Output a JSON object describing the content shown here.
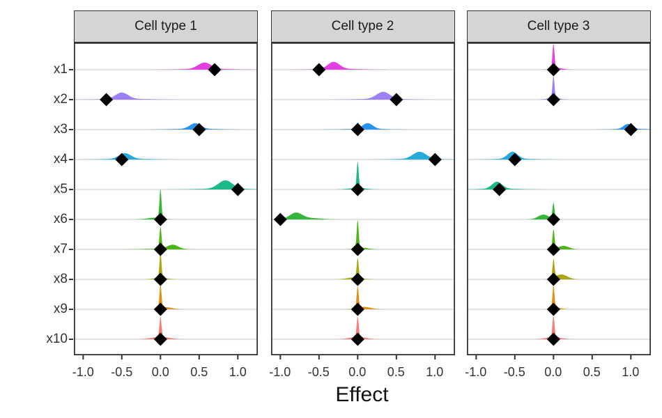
{
  "chart_data": {
    "type": "ridgeline",
    "title": "",
    "xlabel": "Effect",
    "ylabel": "",
    "x_ticks": [
      -1.0,
      -0.5,
      0.0,
      0.5,
      1.0
    ],
    "x_tick_labels": [
      "-1.0",
      "-0.5",
      "0.0",
      "0.5",
      "1.0"
    ],
    "xlim": [
      -1.12,
      1.26
    ],
    "grid": "horizontal-major-only",
    "legend": "none",
    "point_marker": "diamond",
    "marker_color": "#000000",
    "strip_fill": "#D5D5D5",
    "border_color": "#333333",
    "grid_color": "#E4E4E4",
    "y_categories": [
      "x1",
      "x2",
      "x3",
      "x4",
      "x5",
      "x6",
      "x7",
      "x8",
      "x9",
      "x10"
    ],
    "colors": [
      "#E23BDE",
      "#9C7BF4",
      "#2290F0",
      "#22A7DB",
      "#16B787",
      "#30B433",
      "#45B40E",
      "#A9A408",
      "#DD8D0E",
      "#F8766D"
    ],
    "density_note": "density components as [center, sigma, peak_height_px] on Effect scale",
    "facets": [
      {
        "title": "Cell type 1",
        "rows": [
          {
            "var": "x1",
            "estimate": 0.7,
            "density": [
              [
                0.57,
                0.085,
                9
              ],
              [
                0.6,
                0.28,
                1.2
              ]
            ]
          },
          {
            "var": "x2",
            "estimate": -0.7,
            "density": [
              [
                -0.5,
                0.08,
                9
              ],
              [
                -0.45,
                0.28,
                1.2
              ]
            ]
          },
          {
            "var": "x3",
            "estimate": 0.5,
            "density": [
              [
                0.45,
                0.07,
                8
              ],
              [
                0.45,
                0.25,
                1.2
              ]
            ]
          },
          {
            "var": "x4",
            "estimate": -0.5,
            "density": [
              [
                -0.46,
                0.075,
                8
              ],
              [
                -0.42,
                0.25,
                1.2
              ]
            ]
          },
          {
            "var": "x5",
            "estimate": 1.0,
            "density": [
              [
                0.84,
                0.09,
                12
              ],
              [
                0.8,
                0.28,
                1.2
              ]
            ]
          },
          {
            "var": "x6",
            "estimate": 0.0,
            "density": [
              [
                0,
                0.013,
                42
              ],
              [
                -0.08,
                0.09,
                2.5
              ]
            ]
          },
          {
            "var": "x7",
            "estimate": 0.0,
            "density": [
              [
                0,
                0.013,
                31
              ],
              [
                0.16,
                0.07,
                6
              ],
              [
                0,
                0.2,
                1
              ]
            ]
          },
          {
            "var": "x8",
            "estimate": 0.0,
            "density": [
              [
                0,
                0.013,
                36
              ],
              [
                0,
                0.08,
                2.5
              ]
            ]
          },
          {
            "var": "x9",
            "estimate": 0.0,
            "density": [
              [
                0,
                0.013,
                34
              ],
              [
                0.07,
                0.08,
                3
              ]
            ]
          },
          {
            "var": "x10",
            "estimate": 0.0,
            "density": [
              [
                0,
                0.013,
                29
              ],
              [
                0,
                0.11,
                3.5
              ]
            ]
          }
        ]
      },
      {
        "title": "Cell type 2",
        "rows": [
          {
            "var": "x1",
            "estimate": -0.5,
            "density": [
              [
                -0.31,
                0.075,
                10
              ],
              [
                -0.25,
                0.25,
                1.2
              ]
            ]
          },
          {
            "var": "x2",
            "estimate": 0.5,
            "density": [
              [
                0.33,
                0.085,
                10
              ],
              [
                0.3,
                0.28,
                1.2
              ]
            ]
          },
          {
            "var": "x3",
            "estimate": 0.0,
            "density": [
              [
                0.13,
                0.065,
                8
              ],
              [
                0,
                0.015,
                8
              ],
              [
                0.1,
                0.22,
                1.2
              ]
            ]
          },
          {
            "var": "x4",
            "estimate": 1.0,
            "density": [
              [
                0.8,
                0.085,
                10
              ],
              [
                0.78,
                0.25,
                1.2
              ]
            ]
          },
          {
            "var": "x5",
            "estimate": 0.0,
            "density": [
              [
                0,
                0.013,
                37
              ],
              [
                0,
                0.1,
                2.5
              ]
            ]
          },
          {
            "var": "x6",
            "estimate": -1.0,
            "density": [
              [
                -0.8,
                0.08,
                9
              ],
              [
                -0.62,
                0.14,
                2
              ]
            ]
          },
          {
            "var": "x7",
            "estimate": 0.0,
            "density": [
              [
                0,
                0.013,
                40
              ],
              [
                0.05,
                0.08,
                2.5
              ]
            ]
          },
          {
            "var": "x8",
            "estimate": 0.0,
            "density": [
              [
                0,
                0.013,
                28
              ],
              [
                -0.04,
                0.09,
                3
              ]
            ]
          },
          {
            "var": "x9",
            "estimate": 0.0,
            "density": [
              [
                0,
                0.013,
                31
              ],
              [
                0.08,
                0.09,
                3.5
              ]
            ]
          },
          {
            "var": "x10",
            "estimate": 0.0,
            "density": [
              [
                0,
                0.013,
                29
              ],
              [
                0,
                0.1,
                3.5
              ]
            ]
          }
        ]
      },
      {
        "title": "Cell type 3",
        "rows": [
          {
            "var": "x1",
            "estimate": 0.0,
            "density": [
              [
                0,
                0.013,
                35
              ],
              [
                0.05,
                0.07,
                2.5
              ]
            ]
          },
          {
            "var": "x2",
            "estimate": 0.0,
            "density": [
              [
                0,
                0.013,
                31
              ],
              [
                0,
                0.07,
                3
              ]
            ]
          },
          {
            "var": "x3",
            "estimate": 1.0,
            "density": [
              [
                0.96,
                0.055,
                7
              ],
              [
                1.0,
                0.2,
                1
              ]
            ]
          },
          {
            "var": "x4",
            "estimate": -0.5,
            "density": [
              [
                -0.53,
                0.065,
                10
              ],
              [
                -0.5,
                0.22,
                1.2
              ]
            ]
          },
          {
            "var": "x5",
            "estimate": -0.7,
            "density": [
              [
                -0.73,
                0.065,
                10
              ],
              [
                -0.7,
                0.22,
                1.2
              ]
            ]
          },
          {
            "var": "x6",
            "estimate": 0.0,
            "density": [
              [
                0,
                0.013,
                23
              ],
              [
                -0.13,
                0.07,
                7
              ]
            ]
          },
          {
            "var": "x7",
            "estimate": 0.0,
            "density": [
              [
                0,
                0.013,
                28
              ],
              [
                0.13,
                0.07,
                5
              ]
            ]
          },
          {
            "var": "x8",
            "estimate": 0.0,
            "density": [
              [
                0,
                0.013,
                26
              ],
              [
                0.1,
                0.08,
                7
              ]
            ]
          },
          {
            "var": "x9",
            "estimate": 0.0,
            "density": [
              [
                0,
                0.013,
                32
              ],
              [
                0.04,
                0.06,
                2.5
              ]
            ]
          },
          {
            "var": "x10",
            "estimate": 0.0,
            "density": [
              [
                0,
                0.013,
                30
              ],
              [
                0,
                0.09,
                3.5
              ]
            ]
          }
        ]
      }
    ]
  }
}
